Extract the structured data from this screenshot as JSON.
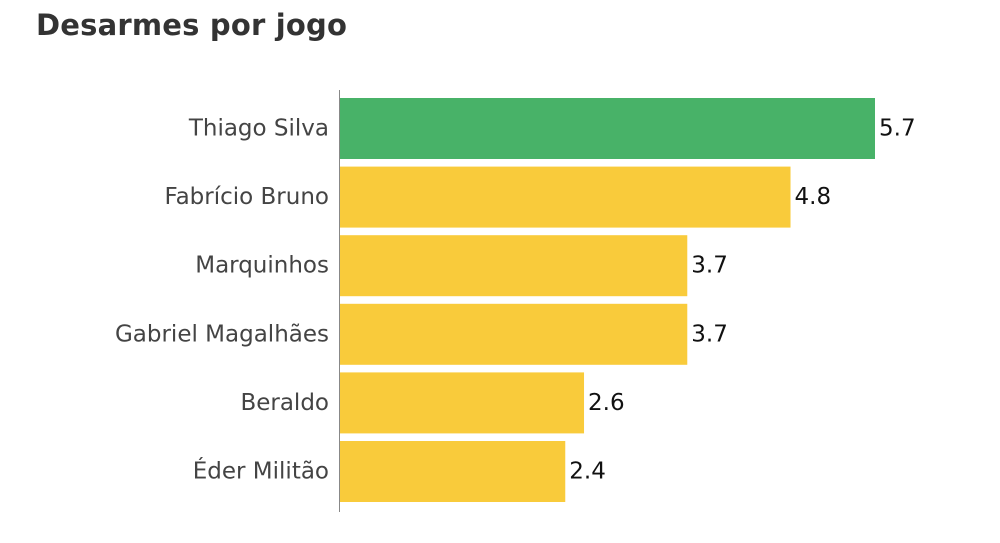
{
  "chart_data": {
    "type": "bar",
    "orientation": "horizontal",
    "title": "Desarmes por jogo",
    "categories": [
      "Thiago Silva",
      "Fabrício Bruno",
      "Marquinhos",
      "Gabriel Magalhães",
      "Beraldo",
      "Éder Militão"
    ],
    "values": [
      5.7,
      4.8,
      3.7,
      3.7,
      2.6,
      2.4
    ],
    "value_labels": [
      "5.7",
      "4.8",
      "3.7",
      "3.7",
      "2.6",
      "2.4"
    ],
    "highlight_category": "Thiago Silva",
    "xlabel": "",
    "ylabel": "",
    "xlim": [
      0,
      5.7
    ],
    "grid": false,
    "colors": {
      "highlight": "#48b268",
      "default": "#f9cb3b",
      "axis": "#888888"
    }
  }
}
